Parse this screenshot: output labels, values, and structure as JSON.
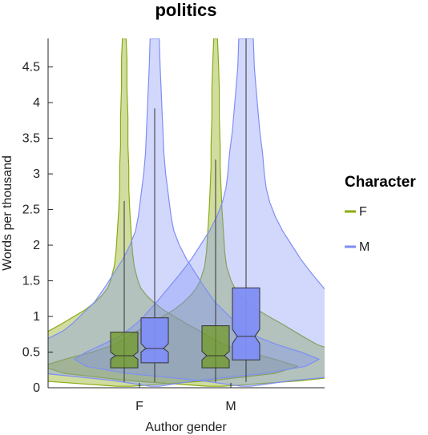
{
  "chart_data": {
    "type": "violin",
    "title": "politics",
    "xlabel": "Author gender",
    "ylabel": "Words per thousand",
    "categories": [
      "F",
      "M"
    ],
    "ylim": [
      0,
      4.9
    ],
    "yticks": [
      0,
      0.5,
      1,
      1.5,
      2,
      2.5,
      3,
      3.5,
      4,
      4.5
    ],
    "ytick_labels": [
      "0",
      "0.5",
      "1",
      "1.5",
      "2",
      "2.5",
      "3",
      "3.5",
      "4",
      "4.5"
    ],
    "legend": {
      "title": "Character",
      "position": "right"
    },
    "grid": false,
    "series": [
      {
        "name": "F",
        "color": "#8aab10",
        "box_color": "#6f9a1a",
        "violin_alpha": 0.4,
        "groups": [
          {
            "category": "F",
            "box": {
              "q1": 0.28,
              "median": 0.45,
              "q3": 0.78,
              "notch_low": 0.4,
              "notch_high": 0.5,
              "whisker_low": 0.08,
              "whisker_high": 2.62
            },
            "violin_half_widths": [
              [
                0.02,
                0.08
              ],
              [
                0.1,
                0.95
              ],
              [
                0.2,
                1.65
              ],
              [
                0.3,
                1.9
              ],
              [
                0.4,
                1.65
              ],
              [
                0.5,
                1.35
              ],
              [
                0.6,
                1.1
              ],
              [
                0.7,
                0.95
              ],
              [
                0.8,
                0.82
              ],
              [
                0.9,
                0.68
              ],
              [
                1.0,
                0.55
              ],
              [
                1.1,
                0.42
              ],
              [
                1.2,
                0.32
              ],
              [
                1.3,
                0.24
              ],
              [
                1.4,
                0.18
              ],
              [
                1.5,
                0.15
              ],
              [
                1.7,
                0.11
              ],
              [
                1.9,
                0.09
              ],
              [
                2.1,
                0.08
              ],
              [
                2.3,
                0.07
              ],
              [
                2.5,
                0.06
              ],
              [
                2.8,
                0.05
              ],
              [
                3.1,
                0.05
              ],
              [
                3.4,
                0.04
              ],
              [
                3.8,
                0.04
              ],
              [
                4.2,
                0.03
              ],
              [
                4.6,
                0.03
              ],
              [
                4.9,
                0.02
              ]
            ]
          },
          {
            "category": "M",
            "box": {
              "q1": 0.28,
              "median": 0.45,
              "q3": 0.87,
              "notch_low": 0.39,
              "notch_high": 0.51,
              "whisker_low": 0.08,
              "whisker_high": 3.2
            },
            "violin_half_widths": [
              [
                0.02,
                0.08
              ],
              [
                0.1,
                0.95
              ],
              [
                0.2,
                1.65
              ],
              [
                0.3,
                1.9
              ],
              [
                0.4,
                1.65
              ],
              [
                0.5,
                1.35
              ],
              [
                0.6,
                1.12
              ],
              [
                0.7,
                0.98
              ],
              [
                0.8,
                0.85
              ],
              [
                0.9,
                0.72
              ],
              [
                1.0,
                0.58
              ],
              [
                1.1,
                0.45
              ],
              [
                1.2,
                0.35
              ],
              [
                1.3,
                0.27
              ],
              [
                1.4,
                0.21
              ],
              [
                1.5,
                0.17
              ],
              [
                1.7,
                0.12
              ],
              [
                1.9,
                0.1
              ],
              [
                2.1,
                0.09
              ],
              [
                2.3,
                0.08
              ],
              [
                2.5,
                0.07
              ],
              [
                2.8,
                0.06
              ],
              [
                3.1,
                0.05
              ],
              [
                3.4,
                0.05
              ],
              [
                3.8,
                0.04
              ],
              [
                4.2,
                0.04
              ],
              [
                4.6,
                0.03
              ],
              [
                4.9,
                0.02
              ]
            ]
          }
        ]
      },
      {
        "name": "M",
        "color": "#7f8ef5",
        "box_color": "#7f8ef5",
        "violin_alpha": 0.35,
        "groups": [
          {
            "category": "F",
            "box": {
              "q1": 0.35,
              "median": 0.55,
              "q3": 0.98,
              "notch_low": 0.5,
              "notch_high": 0.62,
              "whisker_low": 0.08,
              "whisker_high": 3.92
            },
            "violin_half_widths": [
              [
                0.02,
                0.05
              ],
              [
                0.1,
                0.45
              ],
              [
                0.2,
                1.2
              ],
              [
                0.3,
                1.65
              ],
              [
                0.4,
                1.8
              ],
              [
                0.5,
                1.6
              ],
              [
                0.6,
                1.35
              ],
              [
                0.7,
                1.15
              ],
              [
                0.8,
                1.0
              ],
              [
                0.9,
                0.9
              ],
              [
                1.0,
                0.82
              ],
              [
                1.2,
                0.66
              ],
              [
                1.4,
                0.55
              ],
              [
                1.6,
                0.45
              ],
              [
                1.8,
                0.35
              ],
              [
                2.0,
                0.27
              ],
              [
                2.2,
                0.21
              ],
              [
                2.4,
                0.18
              ],
              [
                2.6,
                0.16
              ],
              [
                2.8,
                0.14
              ],
              [
                3.0,
                0.12
              ],
              [
                3.3,
                0.1
              ],
              [
                3.6,
                0.09
              ],
              [
                3.9,
                0.08
              ],
              [
                4.2,
                0.07
              ],
              [
                4.5,
                0.06
              ],
              [
                4.9,
                0.05
              ]
            ]
          },
          {
            "category": "M",
            "box": {
              "q1": 0.39,
              "median": 0.72,
              "q3": 1.4,
              "notch_low": 0.62,
              "notch_high": 0.82,
              "whisker_low": 0.08,
              "whisker_high": 4.9
            },
            "violin_half_widths": [
              [
                0.02,
                0.05
              ],
              [
                0.1,
                0.5
              ],
              [
                0.2,
                1.3
              ],
              [
                0.3,
                1.75
              ],
              [
                0.4,
                1.88
              ],
              [
                0.5,
                1.75
              ],
              [
                0.6,
                1.58
              ],
              [
                0.7,
                1.42
              ],
              [
                0.8,
                1.3
              ],
              [
                0.9,
                1.2
              ],
              [
                1.0,
                1.12
              ],
              [
                1.2,
                0.98
              ],
              [
                1.4,
                0.85
              ],
              [
                1.6,
                0.72
              ],
              [
                1.8,
                0.6
              ],
              [
                2.0,
                0.5
              ],
              [
                2.2,
                0.4
              ],
              [
                2.4,
                0.32
              ],
              [
                2.6,
                0.26
              ],
              [
                2.8,
                0.22
              ],
              [
                3.0,
                0.2
              ],
              [
                3.3,
                0.18
              ],
              [
                3.6,
                0.15
              ],
              [
                3.9,
                0.13
              ],
              [
                4.2,
                0.11
              ],
              [
                4.5,
                0.09
              ],
              [
                4.9,
                0.08
              ]
            ]
          }
        ]
      }
    ]
  }
}
